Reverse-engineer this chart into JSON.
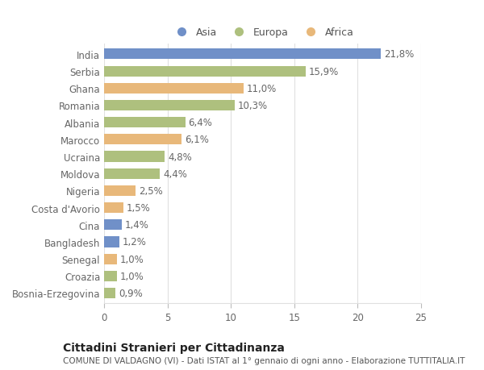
{
  "countries": [
    "India",
    "Serbia",
    "Ghana",
    "Romania",
    "Albania",
    "Marocco",
    "Ucraina",
    "Moldova",
    "Nigeria",
    "Costa d'Avorio",
    "Cina",
    "Bangladesh",
    "Senegal",
    "Croazia",
    "Bosnia-Erzegovina"
  ],
  "values": [
    21.8,
    15.9,
    11.0,
    10.3,
    6.4,
    6.1,
    4.8,
    4.4,
    2.5,
    1.5,
    1.4,
    1.2,
    1.0,
    1.0,
    0.9
  ],
  "labels": [
    "21,8%",
    "15,9%",
    "11,0%",
    "10,3%",
    "6,4%",
    "6,1%",
    "4,8%",
    "4,4%",
    "2,5%",
    "1,5%",
    "1,4%",
    "1,2%",
    "1,0%",
    "1,0%",
    "0,9%"
  ],
  "continents": [
    "Asia",
    "Europa",
    "Africa",
    "Europa",
    "Europa",
    "Africa",
    "Europa",
    "Europa",
    "Africa",
    "Africa",
    "Asia",
    "Asia",
    "Africa",
    "Europa",
    "Europa"
  ],
  "colors": {
    "Asia": "#7090c8",
    "Europa": "#aec07e",
    "Africa": "#e8b87a"
  },
  "xlim": [
    0,
    25
  ],
  "xticks": [
    0,
    5,
    10,
    15,
    20,
    25
  ],
  "title": "Cittadini Stranieri per Cittadinanza",
  "subtitle": "COMUNE DI VALDAGNO (VI) - Dati ISTAT al 1° gennaio di ogni anno - Elaborazione TUTTITALIA.IT",
  "background_color": "#ffffff",
  "grid_color": "#e0e0e0",
  "bar_height": 0.62,
  "label_fontsize": 8.5,
  "tick_fontsize": 8.5,
  "title_fontsize": 10,
  "subtitle_fontsize": 7.5,
  "legend_fontsize": 9
}
